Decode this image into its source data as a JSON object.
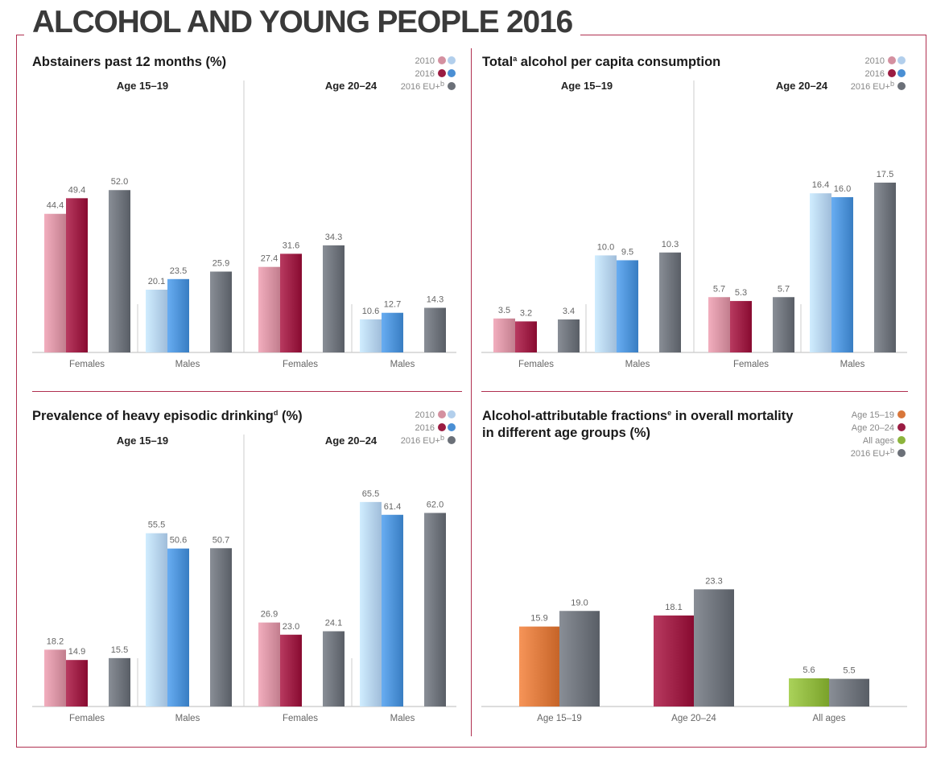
{
  "page_title": "ALCOHOL AND YOUNG PEOPLE 2016",
  "colors": {
    "frame": "#b03050",
    "female_2010": "#d490a0",
    "female_2016": "#9a1c42",
    "male_2010": "#b2cfec",
    "male_2016": "#4a8fd4",
    "eu": "#6b7078",
    "age_15_19": "#d8763a",
    "age_20_24": "#9a1c42",
    "all_ages": "#8cb43c"
  },
  "chart_data": [
    {
      "id": "abstainers",
      "type": "bar",
      "title": "Abstainers past 12 months (%)",
      "title_sup": "",
      "legend": [
        {
          "label": "2010",
          "colors": [
            "#d490a0",
            "#b2cfec"
          ]
        },
        {
          "label": "2016",
          "colors": [
            "#9a1c42",
            "#4a8fd4"
          ]
        },
        {
          "label": "2016 EU+",
          "sup": "b",
          "colors": [
            "#6b7078"
          ]
        }
      ],
      "age_groups": [
        "Age 15–19",
        "Age 20–24"
      ],
      "categories": [
        "Females",
        "Males",
        "Females",
        "Males"
      ],
      "groups": [
        {
          "age": "Age 15–19",
          "sex": "Females",
          "values": {
            "2010": 44.4,
            "2016": 49.4,
            "2016 EU+": 52.0
          }
        },
        {
          "age": "Age 15–19",
          "sex": "Males",
          "values": {
            "2010": 20.1,
            "2016": 23.5,
            "2016 EU+": 25.9
          }
        },
        {
          "age": "Age 20–24",
          "sex": "Females",
          "values": {
            "2010": 27.4,
            "2016": 31.6,
            "2016 EU+": 34.3
          }
        },
        {
          "age": "Age 20–24",
          "sex": "Males",
          "values": {
            "2010": 10.6,
            "2016": 12.7,
            "2016 EU+": 14.3
          }
        }
      ]
    },
    {
      "id": "consumption",
      "type": "bar",
      "title": "Total",
      "title_sup": "a",
      "title_rest": " alcohol per capita consumption",
      "legend": [
        {
          "label": "2010",
          "colors": [
            "#d490a0",
            "#b2cfec"
          ]
        },
        {
          "label": "2016",
          "colors": [
            "#9a1c42",
            "#4a8fd4"
          ]
        },
        {
          "label": "2016 EU+",
          "sup": "b",
          "colors": [
            "#6b7078"
          ]
        }
      ],
      "age_groups": [
        "Age 15–19",
        "Age 20–24"
      ],
      "categories": [
        "Females",
        "Males",
        "Females",
        "Males"
      ],
      "groups": [
        {
          "age": "Age 15–19",
          "sex": "Females",
          "values": {
            "2010": 3.5,
            "2016": 3.2,
            "2016 EU+": 3.4
          }
        },
        {
          "age": "Age 15–19",
          "sex": "Males",
          "values": {
            "2010": 10.0,
            "2016": 9.5,
            "2016 EU+": 10.3
          }
        },
        {
          "age": "Age 20–24",
          "sex": "Females",
          "values": {
            "2010": 5.7,
            "2016": 5.3,
            "2016 EU+": 5.7
          }
        },
        {
          "age": "Age 20–24",
          "sex": "Males",
          "values": {
            "2010": 16.4,
            "2016": 16.0,
            "2016 EU+": 17.5
          }
        }
      ]
    },
    {
      "id": "heavy_episodic",
      "type": "bar",
      "title": "Prevalence of heavy episodic drinking",
      "title_sup": "d",
      "title_rest": " (%)",
      "legend": [
        {
          "label": "2010",
          "colors": [
            "#d490a0",
            "#b2cfec"
          ]
        },
        {
          "label": "2016",
          "colors": [
            "#9a1c42",
            "#4a8fd4"
          ]
        },
        {
          "label": "2016 EU+",
          "sup": "b",
          "colors": [
            "#6b7078"
          ]
        }
      ],
      "age_groups": [
        "Age 15–19",
        "Age 20–24"
      ],
      "categories": [
        "Females",
        "Males",
        "Females",
        "Males"
      ],
      "groups": [
        {
          "age": "Age 15–19",
          "sex": "Females",
          "values": {
            "2010": 18.2,
            "2016": 14.9,
            "2016 EU+": 15.5
          }
        },
        {
          "age": "Age 15–19",
          "sex": "Males",
          "values": {
            "2010": 55.5,
            "2016": 50.6,
            "2016 EU+": 50.7
          }
        },
        {
          "age": "Age 20–24",
          "sex": "Females",
          "values": {
            "2010": 26.9,
            "2016": 23.0,
            "2016 EU+": 24.1
          }
        },
        {
          "age": "Age 20–24",
          "sex": "Males",
          "values": {
            "2010": 65.5,
            "2016": 61.4,
            "2016 EU+": 62.0
          }
        }
      ]
    },
    {
      "id": "aaf_mortality",
      "type": "bar",
      "title_line1": "Alcohol-attributable fractions",
      "title_sup": "e",
      "title_line1_rest": " in overall mortality",
      "title_line2": "in different age groups (%)",
      "legend": [
        {
          "label": "Age 15–19",
          "colors": [
            "#d8763a"
          ]
        },
        {
          "label": "Age 20–24",
          "colors": [
            "#9a1c42"
          ]
        },
        {
          "label": "All ages",
          "colors": [
            "#8cb43c"
          ]
        },
        {
          "label": "2016 EU+",
          "sup": "b",
          "colors": [
            "#6b7078"
          ]
        }
      ],
      "categories": [
        "Age 15–19",
        "Age 20–24",
        "All ages"
      ],
      "series": [
        {
          "name": "Age group",
          "values": [
            15.9,
            18.1,
            5.6
          ]
        },
        {
          "name": "2016 EU+",
          "values": [
            19.0,
            23.3,
            5.5
          ]
        }
      ]
    }
  ]
}
